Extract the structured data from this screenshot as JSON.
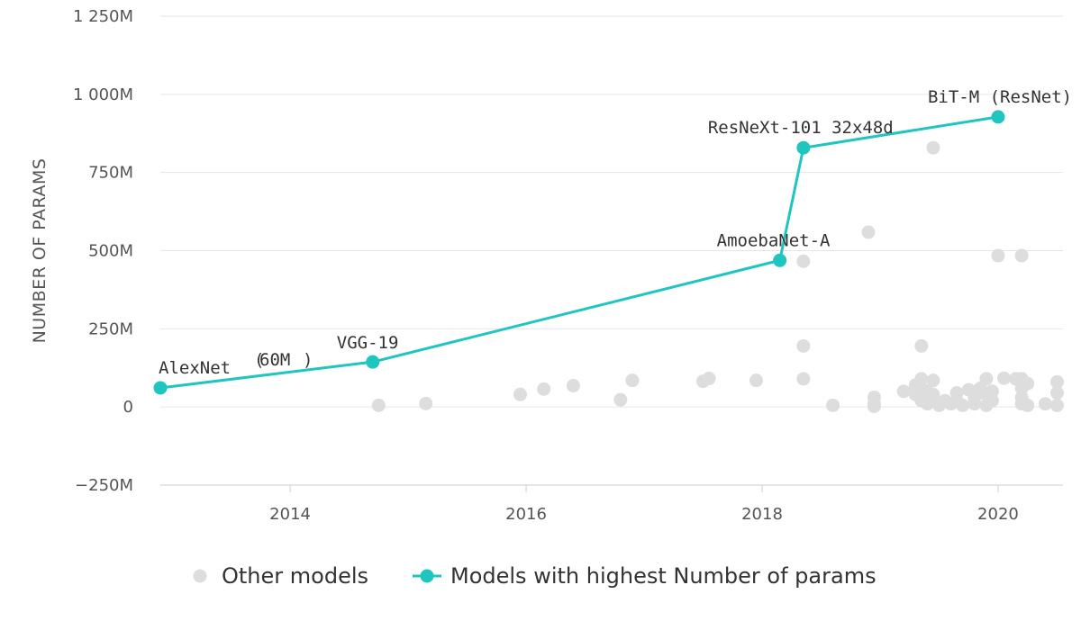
{
  "chart_data": {
    "type": "scatter",
    "title": "",
    "xlabel": "",
    "ylabel": "NUMBER OF PARAMS",
    "xlim": [
      2012.9,
      2020.55
    ],
    "ylim": [
      -250,
      1250
    ],
    "x_ticks": [
      {
        "value": 2014,
        "label": "2014"
      },
      {
        "value": 2016,
        "label": "2016"
      },
      {
        "value": 2018,
        "label": "2018"
      },
      {
        "value": 2020,
        "label": "2020"
      }
    ],
    "y_ticks": [
      {
        "value": 1250,
        "label": "1 250M"
      },
      {
        "value": 1000,
        "label": "1 000M"
      },
      {
        "value": 750,
        "label": "750M"
      },
      {
        "value": 500,
        "label": "500M"
      },
      {
        "value": 250,
        "label": "250M"
      },
      {
        "value": 0,
        "label": "0"
      },
      {
        "value": -250,
        "label": "−250M"
      }
    ],
    "grid": "horizontal",
    "legend_position": "bottom",
    "colors": {
      "other": "#dddddd",
      "highest": "#21c5c0",
      "grid": "#e6e6e6",
      "text": "#333333",
      "axis_text": "#555555"
    },
    "series": [
      {
        "name": "Models with highest Number of params",
        "kind": "line",
        "points": [
          {
            "x": 2012.9,
            "y": 61,
            "label": "AlexNet",
            "extra_label": "60M"
          },
          {
            "x": 2014.7,
            "y": 144,
            "label": "VGG-19"
          },
          {
            "x": 2018.15,
            "y": 469,
            "label": "AmoebaNet-A"
          },
          {
            "x": 2018.35,
            "y": 829,
            "label": "ResNeXt-101 32x48d"
          },
          {
            "x": 2020.0,
            "y": 928,
            "label": "BiT-M (ResNet)"
          }
        ]
      },
      {
        "name": "Other models",
        "kind": "scatter",
        "points": [
          {
            "x": 2014.75,
            "y": 5
          },
          {
            "x": 2015.15,
            "y": 11
          },
          {
            "x": 2015.95,
            "y": 40
          },
          {
            "x": 2016.15,
            "y": 57
          },
          {
            "x": 2016.4,
            "y": 68
          },
          {
            "x": 2016.8,
            "y": 23
          },
          {
            "x": 2016.9,
            "y": 85
          },
          {
            "x": 2017.5,
            "y": 82
          },
          {
            "x": 2017.55,
            "y": 91
          },
          {
            "x": 2017.95,
            "y": 85
          },
          {
            "x": 2018.35,
            "y": 466
          },
          {
            "x": 2018.35,
            "y": 195
          },
          {
            "x": 2018.35,
            "y": 90
          },
          {
            "x": 2018.6,
            "y": 5
          },
          {
            "x": 2018.9,
            "y": 559
          },
          {
            "x": 2018.95,
            "y": 31
          },
          {
            "x": 2018.95,
            "y": 10
          },
          {
            "x": 2018.95,
            "y": 2
          },
          {
            "x": 2019.2,
            "y": 50
          },
          {
            "x": 2019.3,
            "y": 70
          },
          {
            "x": 2019.3,
            "y": 40
          },
          {
            "x": 2019.35,
            "y": 195
          },
          {
            "x": 2019.35,
            "y": 90
          },
          {
            "x": 2019.35,
            "y": 60
          },
          {
            "x": 2019.35,
            "y": 20
          },
          {
            "x": 2019.4,
            "y": 50
          },
          {
            "x": 2019.4,
            "y": 10
          },
          {
            "x": 2019.45,
            "y": 829
          },
          {
            "x": 2019.45,
            "y": 85
          },
          {
            "x": 2019.45,
            "y": 40
          },
          {
            "x": 2019.5,
            "y": 5
          },
          {
            "x": 2019.55,
            "y": 20
          },
          {
            "x": 2019.6,
            "y": 10
          },
          {
            "x": 2019.65,
            "y": 45
          },
          {
            "x": 2019.65,
            "y": 20
          },
          {
            "x": 2019.7,
            "y": 5
          },
          {
            "x": 2019.75,
            "y": 55
          },
          {
            "x": 2019.8,
            "y": 30
          },
          {
            "x": 2019.8,
            "y": 10
          },
          {
            "x": 2019.85,
            "y": 60
          },
          {
            "x": 2019.9,
            "y": 90
          },
          {
            "x": 2019.9,
            "y": 40
          },
          {
            "x": 2019.9,
            "y": 5
          },
          {
            "x": 2019.95,
            "y": 50
          },
          {
            "x": 2019.95,
            "y": 20
          },
          {
            "x": 2020.0,
            "y": 484
          },
          {
            "x": 2020.05,
            "y": 92
          },
          {
            "x": 2020.15,
            "y": 90
          },
          {
            "x": 2020.2,
            "y": 484
          },
          {
            "x": 2020.2,
            "y": 90
          },
          {
            "x": 2020.2,
            "y": 60
          },
          {
            "x": 2020.2,
            "y": 30
          },
          {
            "x": 2020.2,
            "y": 10
          },
          {
            "x": 2020.25,
            "y": 75
          },
          {
            "x": 2020.25,
            "y": 5
          },
          {
            "x": 2020.4,
            "y": 10
          },
          {
            "x": 2020.5,
            "y": 80
          },
          {
            "x": 2020.5,
            "y": 45
          },
          {
            "x": 2020.5,
            "y": 5
          }
        ]
      }
    ],
    "legend": [
      {
        "label": "Other models",
        "marker": "circle",
        "color": "#dddddd"
      },
      {
        "label": "Models with highest Number of params",
        "marker": "line-circle",
        "color": "#21c5c0"
      }
    ]
  }
}
